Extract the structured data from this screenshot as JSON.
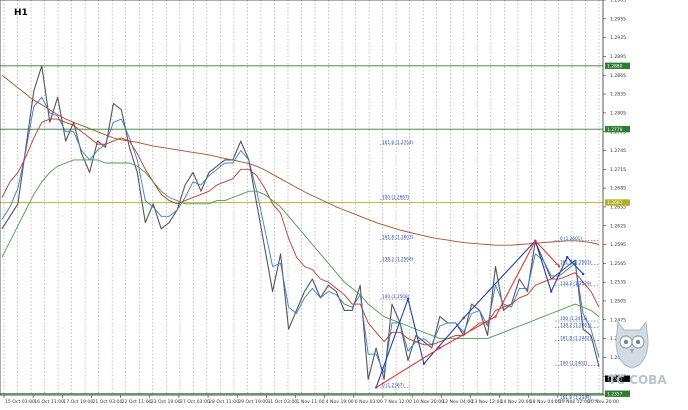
{
  "chart_data": {
    "type": "line",
    "title": "H1",
    "ylim": [
      1.2355,
      1.2985
    ],
    "x_labels": [
      "15 Oct 03:00",
      "16 Oct 11:00",
      "17 Oct 19:00",
      "21 Oct 03:00",
      "22 Oct 11:00",
      "23 Oct 19:00",
      "27 Oct 03:00",
      "28 Oct 11:00",
      "29 Oct 19:00",
      "31 Oct 03:00",
      "1 Nov 11:00",
      "4 Nov 19:00",
      "6 Nov 03:00",
      "7 Nov 12:00",
      "10 Nov 20:00",
      "12 Nov 04:00",
      "13 Nov 12:00",
      "14 Nov 20:00",
      "18 Nov 04:00",
      "19 Nov 12:00",
      "20 Nov 20:00"
    ],
    "y_ticks": [
      "1.2985",
      "1.2955",
      "1.2925",
      "1.2895",
      "1.2865",
      "1.2835",
      "1.2805",
      "1.2775",
      "1.2745",
      "1.2715",
      "1.2685",
      "1.2655",
      "1.2625",
      "1.2595",
      "1.2565",
      "1.2535",
      "1.2505",
      "1.2475",
      "1.2445",
      "1.2415",
      "1.2385",
      "1.2355"
    ],
    "price_labels": [
      {
        "text": "1.2880",
        "value": 1.288,
        "color": "#2e7d32"
      },
      {
        "text": "1.2779",
        "value": 1.2779,
        "color": "#2e7d32"
      },
      {
        "text": "1.2662",
        "value": 1.2662,
        "color": "#b5b020"
      },
      {
        "text": "1.2381",
        "value": 1.2381,
        "color": "#000000"
      },
      {
        "text": "1.2357",
        "value": 1.2357,
        "color": "#2e7d32"
      },
      {
        "text": "1.2328",
        "value": 1.2328,
        "color": "#2e7d32"
      },
      {
        "text": "1.2307",
        "value": 1.2307,
        "color": "#2e7d32"
      }
    ],
    "hlines": [
      {
        "value": 1.288,
        "color": "#2e7d32"
      },
      {
        "value": 1.2779,
        "color": "#2e7d32"
      },
      {
        "value": 1.2662,
        "color": "#b5b020"
      },
      {
        "value": 1.2357,
        "color": "#2e7d32"
      },
      {
        "value": 1.2328,
        "color": "#2e7d32"
      },
      {
        "value": 1.2307,
        "color": "#2e7d32"
      }
    ],
    "fib_left": [
      {
        "text": "161.8 (1.2754)",
        "value": 1.2754
      },
      {
        "text": "100 (1.2667)",
        "value": 1.2667
      },
      {
        "text": "161.8 (1.2603)",
        "value": 1.2603
      },
      {
        "text": "138.2 (1.2568)",
        "value": 1.2568
      },
      {
        "text": "100 (1.2508)",
        "value": 1.2508
      },
      {
        "text": "0 (1.2367)",
        "value": 1.2367
      }
    ],
    "fib_right": [
      {
        "text": "0 (1.2601)",
        "value": 1.2601
      },
      {
        "text": "161.8 (1.2563)",
        "value": 1.2563
      },
      {
        "text": "138.2 (1.2529)",
        "value": 1.2529
      },
      {
        "text": "100 (1.2473)",
        "value": 1.2473
      },
      {
        "text": "138.2 (1.2463)",
        "value": 1.2463
      },
      {
        "text": "161.8 (1.2442)",
        "value": 1.2442
      },
      {
        "text": "100 (1.2402)",
        "value": 1.2402
      },
      {
        "text": "161.8 (1.2347)",
        "value": 1.2347
      }
    ],
    "series": [
      {
        "color": "#555555",
        "values": [
          1.262,
          1.264,
          1.266,
          1.275,
          1.284,
          1.288,
          1.279,
          1.283,
          1.276,
          1.279,
          1.274,
          1.271,
          1.276,
          1.275,
          1.282,
          1.281,
          1.275,
          1.271,
          1.263,
          1.266,
          1.262,
          1.263,
          1.265,
          1.269,
          1.271,
          1.268,
          1.271,
          1.272,
          1.273,
          1.273,
          1.276,
          1.273,
          1.266,
          1.259,
          1.252,
          1.258,
          1.246,
          1.249,
          1.252,
          1.254,
          1.251,
          1.253,
          1.252,
          1.249,
          1.249,
          1.253,
          1.238,
          1.243,
          1.238,
          1.25,
          1.247,
          1.241,
          1.245,
          1.244,
          1.243,
          1.248,
          1.247,
          1.247,
          1.245,
          1.25,
          1.249,
          1.245,
          1.256,
          1.249,
          1.25,
          1.254,
          1.252,
          1.26,
          1.257,
          1.254,
          1.255,
          1.256,
          1.257,
          1.246,
          1.245,
          1.24
        ]
      },
      {
        "color": "#3c78d8",
        "values": [
          1.2635,
          1.2655,
          1.2685,
          1.2745,
          1.2815,
          1.283,
          1.2805,
          1.28,
          1.2775,
          1.2775,
          1.2745,
          1.273,
          1.2745,
          1.2755,
          1.279,
          1.2795,
          1.2765,
          1.273,
          1.2665,
          1.2655,
          1.264,
          1.264,
          1.265,
          1.267,
          1.2695,
          1.269,
          1.2705,
          1.2715,
          1.2725,
          1.2725,
          1.2745,
          1.273,
          1.268,
          1.262,
          1.256,
          1.2565,
          1.2495,
          1.2485,
          1.251,
          1.2525,
          1.251,
          1.252,
          1.2515,
          1.25,
          1.2495,
          1.2515,
          1.242,
          1.242,
          1.239,
          1.247,
          1.247,
          1.2425,
          1.244,
          1.2445,
          1.2435,
          1.2465,
          1.247,
          1.247,
          1.2455,
          1.2485,
          1.249,
          1.2465,
          1.253,
          1.25,
          1.2495,
          1.2525,
          1.2525,
          1.258,
          1.257,
          1.2545,
          1.2545,
          1.2555,
          1.2565,
          1.2485,
          1.246,
          1.2415
        ]
      },
      {
        "color": "#c0392b",
        "values": [
          1.267,
          1.2695,
          1.271,
          1.2735,
          1.2765,
          1.279,
          1.2795,
          1.2795,
          1.279,
          1.2785,
          1.2775,
          1.2765,
          1.2755,
          1.2755,
          1.276,
          1.2765,
          1.276,
          1.274,
          1.2715,
          1.2695,
          1.2675,
          1.2665,
          1.266,
          1.2665,
          1.267,
          1.2675,
          1.268,
          1.269,
          1.2695,
          1.27,
          1.2715,
          1.2715,
          1.2705,
          1.2685,
          1.266,
          1.2645,
          1.2605,
          1.2575,
          1.256,
          1.2555,
          1.254,
          1.2535,
          1.2525,
          1.2515,
          1.25,
          1.25,
          1.247,
          1.2455,
          1.244,
          1.2455,
          1.2455,
          1.2445,
          1.244,
          1.2435,
          1.2435,
          1.244,
          1.2445,
          1.245,
          1.245,
          1.246,
          1.247,
          1.247,
          1.249,
          1.2495,
          1.25,
          1.251,
          1.2515,
          1.253,
          1.2535,
          1.254,
          1.254,
          1.2545,
          1.255,
          1.2535,
          1.252,
          1.2495
        ]
      },
      {
        "color": "#4f9a4f",
        "values": [
          1.2575,
          1.26,
          1.2625,
          1.265,
          1.2675,
          1.2695,
          1.271,
          1.272,
          1.2725,
          1.273,
          1.273,
          1.273,
          1.273,
          1.2725,
          1.2725,
          1.2725,
          1.2725,
          1.272,
          1.271,
          1.2695,
          1.268,
          1.267,
          1.2665,
          1.266,
          1.266,
          1.266,
          1.266,
          1.2665,
          1.2665,
          1.267,
          1.2675,
          1.268,
          1.268,
          1.2675,
          1.2665,
          1.2655,
          1.264,
          1.2625,
          1.261,
          1.2595,
          1.258,
          1.2565,
          1.255,
          1.2535,
          1.2525,
          1.2515,
          1.25,
          1.249,
          1.248,
          1.2475,
          1.247,
          1.2465,
          1.246,
          1.2455,
          1.245,
          1.2445,
          1.2445,
          1.2445,
          1.2445,
          1.2445,
          1.2445,
          1.2445,
          1.245,
          1.2455,
          1.246,
          1.2465,
          1.247,
          1.2475,
          1.248,
          1.2485,
          1.249,
          1.2495,
          1.25,
          1.2495,
          1.249,
          1.248
        ]
      },
      {
        "color": "#a0522d",
        "values": [
          1.2865,
          1.2855,
          1.2845,
          1.2835,
          1.2825,
          1.2818,
          1.281,
          1.2802,
          1.2795,
          1.279,
          1.2785,
          1.278,
          1.2775,
          1.277,
          1.2765,
          1.2762,
          1.276,
          1.2758,
          1.2755,
          1.2752,
          1.275,
          1.2748,
          1.2746,
          1.2744,
          1.2742,
          1.274,
          1.2738,
          1.2735,
          1.2732,
          1.273,
          1.2727,
          1.2724,
          1.272,
          1.2714,
          1.2707,
          1.27,
          1.2693,
          1.2686,
          1.2679,
          1.2673,
          1.2667,
          1.2661,
          1.2655,
          1.265,
          1.2645,
          1.264,
          1.2635,
          1.263,
          1.2626,
          1.2622,
          1.2618,
          1.2615,
          1.2612,
          1.2609,
          1.2606,
          1.2604,
          1.2602,
          1.26,
          1.2598,
          1.2597,
          1.2596,
          1.2595,
          1.2594,
          1.2594,
          1.2594,
          1.2595,
          1.2596,
          1.2597,
          1.2598,
          1.2599,
          1.26,
          1.2601,
          1.2601,
          1.26,
          1.2598,
          1.2595
        ]
      }
    ],
    "zigzags": [
      {
        "color": "#1f3fb0",
        "points": [
          [
            47,
            1.2367
          ],
          [
            51,
            1.2508
          ],
          [
            53,
            1.2405
          ],
          [
            58,
            1.2478
          ],
          [
            67,
            1.2601
          ],
          [
            69,
            1.252
          ],
          [
            71,
            1.2575
          ],
          [
            73,
            1.2548
          ]
        ]
      },
      {
        "color": "#e53935",
        "points": [
          [
            47,
            1.2367
          ],
          [
            55,
            1.243
          ],
          [
            62,
            1.248
          ],
          [
            67,
            1.2601
          ],
          [
            70,
            1.256
          ]
        ]
      }
    ],
    "x_count": 76
  },
  "watermark": "TC COBA"
}
